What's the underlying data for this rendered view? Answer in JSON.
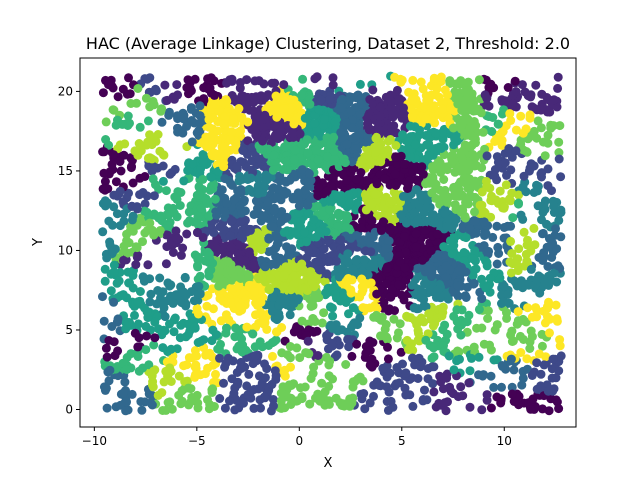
{
  "chart_data": {
    "type": "scatter",
    "title": "HAC (Average Linkage) Clustering, Dataset 2, Threshold: 2.0",
    "xlabel": "X",
    "ylabel": "Y",
    "xlim": [
      -10.7,
      13.5
    ],
    "ylim": [
      -1.1,
      22.1
    ],
    "xticks": [
      -10,
      -5,
      0,
      5,
      10
    ],
    "yticks": [
      0,
      5,
      10,
      15,
      20
    ],
    "grid": false,
    "legend": "none",
    "marker": "circle",
    "colormap": "viridis",
    "palette": [
      "#440154",
      "#482878",
      "#3e4989",
      "#31688e",
      "#26828e",
      "#1f9e89",
      "#35b779",
      "#6ece58",
      "#b5de2b",
      "#fde725"
    ],
    "regions": [
      {
        "x_range": [
          -9.6,
          12.8
        ],
        "y_range": [
          -0.1,
          21.0
        ],
        "points": 2600
      },
      {
        "x_range": [
          -5.0,
          8.6
        ],
        "y_range": [
          7.0,
          19.8
        ],
        "points": 1500
      },
      {
        "x_range": [
          -2.0,
          4.0
        ],
        "y_range": [
          15.5,
          19.5
        ],
        "points": 260
      },
      {
        "x_range": [
          4.0,
          7.5
        ],
        "y_range": [
          8.5,
          12.0
        ],
        "points": 200
      },
      {
        "x_range": [
          -4.0,
          1.0
        ],
        "y_range": [
          6.5,
          9.5
        ],
        "points": 200
      }
    ]
  }
}
